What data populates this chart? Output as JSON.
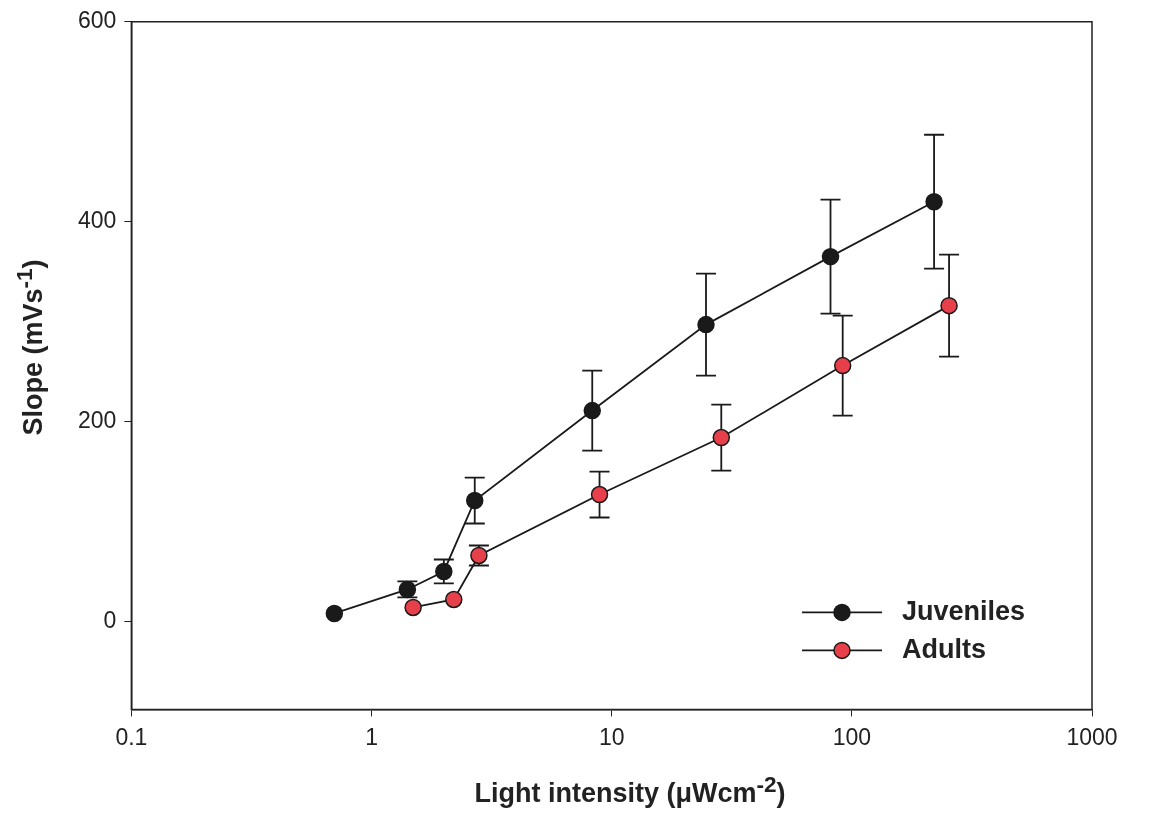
{
  "chart_data": {
    "type": "line",
    "xlabel": "Light intensity (μWcm$^{-2}$)",
    "ylabel": "Slope (mVs$^{-1}$)",
    "log": "x",
    "xlim": [
      0.1,
      1000
    ],
    "xticks": [
      0.1,
      1,
      10,
      100,
      1000
    ],
    "ylim": [
      -88,
      600
    ],
    "yticks": [
      0,
      200,
      400,
      600
    ],
    "grid": false,
    "legend": "bottom right",
    "marker": "circle",
    "line_style": "solid",
    "series": [
      {
        "name": "Juveniles",
        "color": "#1a1a1a",
        "x": [
          0.7,
          1.41,
          2.0,
          2.69,
          8.3,
          24.7,
          81.5,
          220
        ],
        "values": [
          8,
          32,
          50,
          121,
          211,
          297,
          365,
          420
        ],
        "errors": [
          null,
          8,
          12,
          23,
          40,
          51,
          57,
          67
        ]
      },
      {
        "name": "Adults",
        "color": "#e8404a",
        "x": [
          1.49,
          2.2,
          2.8,
          8.9,
          28.6,
          91.6,
          254
        ],
        "values": [
          14,
          22,
          66,
          127,
          184,
          256,
          316
        ],
        "errors": [
          null,
          null,
          10,
          23,
          33,
          50,
          51
        ]
      }
    ]
  }
}
